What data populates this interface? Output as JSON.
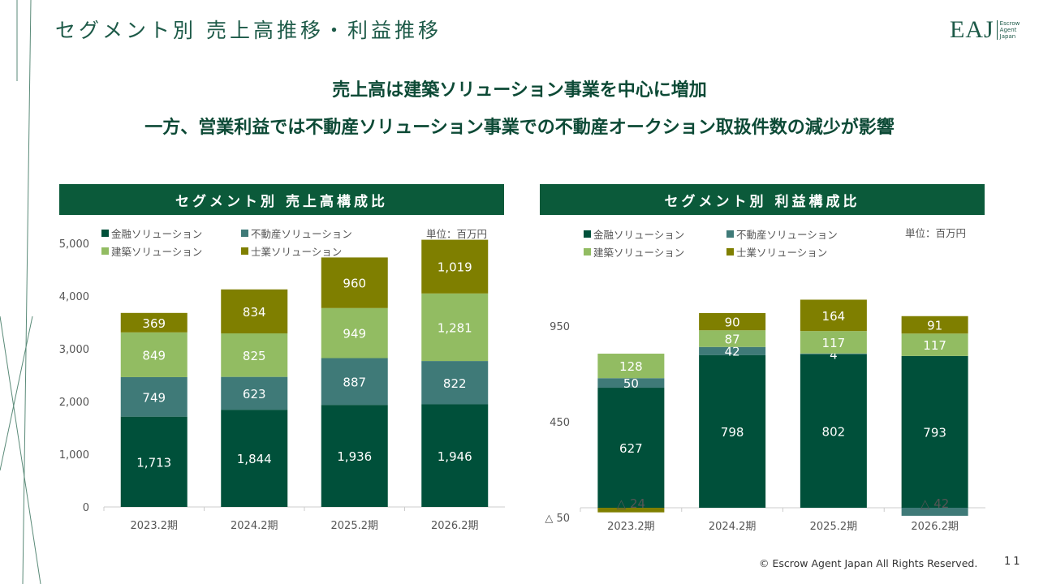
{
  "header": {
    "title": "セグメント別 売上高推移・利益推移",
    "logo_main": "EAJ",
    "logo_sub": [
      "Escrow",
      "Agent",
      "Japan"
    ]
  },
  "headline": {
    "line1": "売上高は建築ソリューション事業を中心に増加",
    "line2": "一方、営業利益では不動産ソリューション事業での不動産オークション取扱件数の減少が影響"
  },
  "colors": {
    "金融": "#00503a",
    "不動産": "#3f7a78",
    "建築": "#92bc62",
    "士業": "#7f7f00",
    "header_bar": "#0b5a3a"
  },
  "footer": {
    "copyright": "© Escrow Agent Japan All Rights Reserved.",
    "page": "11"
  },
  "chart_data": [
    {
      "type": "bar",
      "stacked": true,
      "title": "セグメント別 売上高構成比",
      "unit": "単位：百万円",
      "categories": [
        "2023.2期",
        "2024.2期",
        "2025.2期",
        "2026.2期"
      ],
      "yticks": [
        "0",
        "1,000",
        "2,000",
        "3,000",
        "4,000",
        "5,000"
      ],
      "ylim": [
        0,
        5000
      ],
      "series": [
        {
          "name": "金融ソリューション",
          "values": [
            1713,
            1844,
            1936,
            1946
          ]
        },
        {
          "name": "不動産ソリューション",
          "values": [
            749,
            623,
            887,
            822
          ]
        },
        {
          "name": "建築ソリューション",
          "values": [
            849,
            825,
            949,
            1281
          ]
        },
        {
          "name": "士業ソリューション",
          "values": [
            369,
            834,
            960,
            1019
          ]
        }
      ]
    },
    {
      "type": "bar",
      "stacked": true,
      "title": "セグメント別 利益構成比",
      "unit": "単位：百万円",
      "categories": [
        "2023.2期",
        "2024.2期",
        "2025.2期",
        "2026.2期"
      ],
      "yticks": [
        "△ 50",
        "450",
        "950"
      ],
      "ylim": [
        -50,
        1150
      ],
      "series": [
        {
          "name": "金融ソリューション",
          "values": [
            627,
            798,
            802,
            793
          ]
        },
        {
          "name": "不動産ソリューション",
          "values": [
            50,
            42,
            4,
            -42
          ]
        },
        {
          "name": "建築ソリューション",
          "values": [
            128,
            87,
            117,
            117
          ]
        },
        {
          "name": "士業ソリューション",
          "values": [
            -24,
            90,
            164,
            91
          ]
        }
      ]
    }
  ]
}
